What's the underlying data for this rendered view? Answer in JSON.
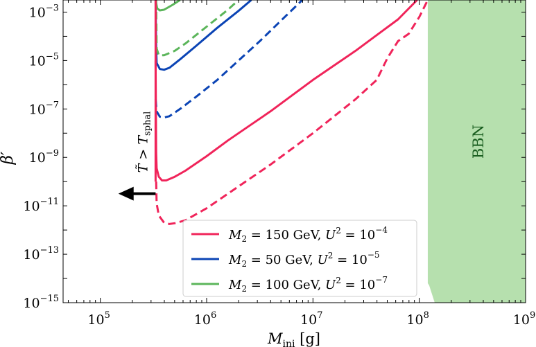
{
  "chart_data": {
    "type": "line",
    "xscale": "log",
    "yscale": "log",
    "xlabel": {
      "main": "M",
      "sub": "ini",
      "unit": "[g]"
    },
    "ylabel": "β′",
    "xlim_log10": [
      4.65,
      9.0
    ],
    "ylim_log10": [
      -15.0,
      -2.5
    ],
    "xticks": [
      {
        "base": "10",
        "exp": "5",
        "value": 5
      },
      {
        "base": "10",
        "exp": "6",
        "value": 6
      },
      {
        "base": "10",
        "exp": "7",
        "value": 7
      },
      {
        "base": "10",
        "exp": "8",
        "value": 8
      },
      {
        "base": "10",
        "exp": "9",
        "value": 9
      }
    ],
    "yticks": [
      {
        "base": "10",
        "exp": "−3",
        "value": -3
      },
      {
        "base": "10",
        "exp": "−5",
        "value": -5
      },
      {
        "base": "10",
        "exp": "−7",
        "value": -7
      },
      {
        "base": "10",
        "exp": "−9",
        "value": -9
      },
      {
        "base": "10",
        "exp": "−11",
        "value": -11
      },
      {
        "base": "10",
        "exp": "−13",
        "value": -13
      },
      {
        "base": "10",
        "exp": "−15",
        "value": -15
      }
    ],
    "series": [
      {
        "name": "M2 = 150 GeV, U2 = 10−4",
        "color": "#f0245a",
        "solid": [
          [
            5.52,
            -5.0
          ],
          [
            5.525,
            -8.8
          ],
          [
            5.53,
            -9.45
          ],
          [
            5.55,
            -9.8
          ],
          [
            5.58,
            -9.95
          ],
          [
            5.62,
            -9.95
          ],
          [
            5.7,
            -9.8
          ],
          [
            5.8,
            -9.55
          ],
          [
            6.0,
            -8.95
          ],
          [
            6.2,
            -8.3
          ],
          [
            6.4,
            -7.7
          ],
          [
            6.6,
            -7.1
          ],
          [
            6.8,
            -6.45
          ],
          [
            7.0,
            -5.8
          ],
          [
            7.2,
            -5.2
          ],
          [
            7.4,
            -4.6
          ],
          [
            7.6,
            -3.95
          ],
          [
            7.8,
            -3.3
          ],
          [
            7.98,
            -2.5
          ]
        ],
        "dashed": [
          [
            5.525,
            -10.0
          ],
          [
            5.53,
            -10.9
          ],
          [
            5.55,
            -11.4
          ],
          [
            5.6,
            -11.7
          ],
          [
            5.65,
            -11.75
          ],
          [
            5.7,
            -11.72
          ],
          [
            5.8,
            -11.6
          ],
          [
            6.0,
            -11.1
          ],
          [
            6.2,
            -10.5
          ],
          [
            6.4,
            -9.9
          ],
          [
            6.6,
            -9.3
          ],
          [
            6.8,
            -8.65
          ],
          [
            7.0,
            -8.0
          ],
          [
            7.2,
            -7.3
          ],
          [
            7.4,
            -6.6
          ],
          [
            7.6,
            -5.8
          ],
          [
            7.7,
            -4.9
          ],
          [
            7.8,
            -4.2
          ],
          [
            7.9,
            -3.9
          ],
          [
            8.0,
            -3.2
          ],
          [
            8.08,
            -2.5
          ]
        ]
      },
      {
        "name": "M2 = 50 GeV, U2 = 10−5",
        "color": "#0b44b5",
        "solid": [
          [
            5.52,
            -2.5
          ],
          [
            5.525,
            -4.5
          ],
          [
            5.53,
            -5.1
          ],
          [
            5.56,
            -5.35
          ],
          [
            5.6,
            -5.38
          ],
          [
            5.65,
            -5.3
          ],
          [
            5.75,
            -4.95
          ],
          [
            5.9,
            -4.4
          ],
          [
            6.1,
            -3.65
          ],
          [
            6.3,
            -2.95
          ],
          [
            6.42,
            -2.5
          ]
        ],
        "dashed": [
          [
            5.52,
            -6.6
          ],
          [
            5.53,
            -7.1
          ],
          [
            5.56,
            -7.32
          ],
          [
            5.6,
            -7.35
          ],
          [
            5.65,
            -7.3
          ],
          [
            5.75,
            -7.0
          ],
          [
            5.9,
            -6.5
          ],
          [
            6.1,
            -5.8
          ],
          [
            6.3,
            -5.0
          ],
          [
            6.5,
            -4.2
          ],
          [
            6.7,
            -3.35
          ],
          [
            6.9,
            -2.5
          ]
        ]
      },
      {
        "name": "M2 = 100 GeV, U2 = 10−7",
        "color": "#5bb55a",
        "solid": [
          [
            5.52,
            -2.5
          ],
          [
            5.535,
            -2.85
          ],
          [
            5.56,
            -2.93
          ],
          [
            5.6,
            -2.9
          ],
          [
            5.68,
            -2.7
          ],
          [
            5.75,
            -2.5
          ]
        ],
        "dashed": [
          [
            5.525,
            -2.5
          ],
          [
            5.53,
            -4.5
          ],
          [
            5.55,
            -4.78
          ],
          [
            5.6,
            -4.78
          ],
          [
            5.7,
            -4.6
          ],
          [
            5.8,
            -4.3
          ],
          [
            6.0,
            -3.6
          ],
          [
            6.2,
            -2.9
          ],
          [
            6.3,
            -2.5
          ]
        ]
      }
    ],
    "regions": [
      {
        "label": "BBN",
        "color": "#b6e0ae",
        "text_color": "#1a5e20",
        "x_start_log10": 8.08,
        "x_end_log10": 9.0
      }
    ],
    "vertical_line": {
      "x_log10": 5.52,
      "y_top_log10": -2.5,
      "y_bottom_log10": -10.0,
      "color": "#f0245a"
    },
    "arrow": {
      "x_from_log10": 5.52,
      "x_to_log10": 5.17,
      "y_log10": -10.5,
      "color": "#000000"
    },
    "annotation": {
      "text_tilde_T": "T̃",
      "relation": ">",
      "T": "T",
      "T_sub": "sphal"
    },
    "legend": {
      "placement": "lower-right",
      "entries": [
        {
          "label_M": "M",
          "label_M_sub": "2",
          "label_mid": " = 150 GeV, ",
          "label_U": "U",
          "label_U_sup": "2",
          "label_eq": " = 10",
          "label_exp": "−4",
          "color": "#f0245a"
        },
        {
          "label_M": "M",
          "label_M_sub": "2",
          "label_mid": " = 50  GeV, ",
          "label_U": "U",
          "label_U_sup": "2",
          "label_eq": " = 10",
          "label_exp": "−5",
          "color": "#0b44b5"
        },
        {
          "label_M": "M",
          "label_M_sub": "2",
          "label_mid": " = 100 GeV, ",
          "label_U": "U",
          "label_U_sup": "2",
          "label_eq": " = 10",
          "label_exp": "−7",
          "color": "#5bb55a"
        }
      ]
    }
  }
}
